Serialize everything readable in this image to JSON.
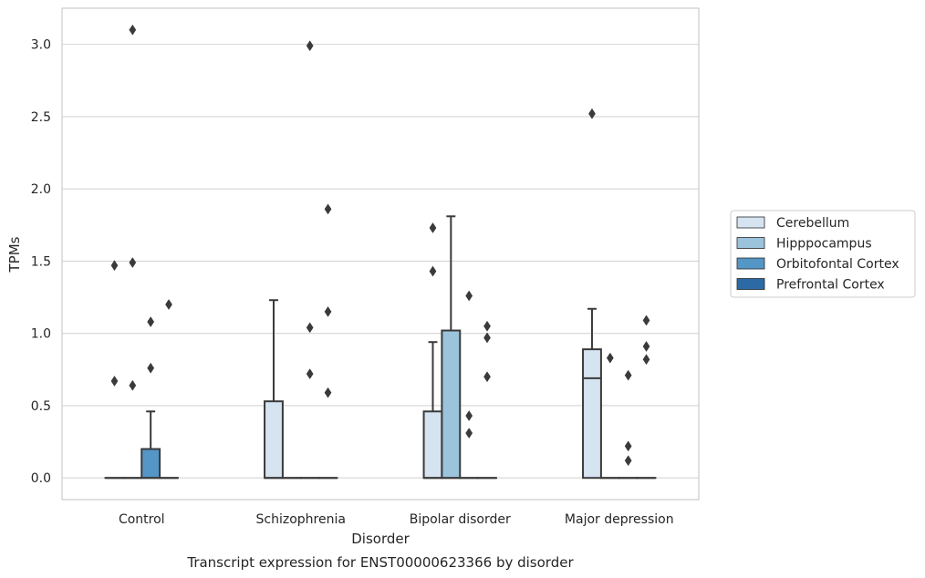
{
  "chart_data": {
    "type": "box",
    "title": "Transcript expression for ENST00000623366 by disorder",
    "xlabel": "Disorder",
    "ylabel": "TPMs",
    "ylim": [
      -0.15,
      3.25
    ],
    "yticks": [
      "0.0",
      "0.5",
      "1.0",
      "1.5",
      "2.0",
      "2.5",
      "3.0"
    ],
    "grid": true,
    "legend_position": "right",
    "categories": [
      "Control",
      "Schizophrenia",
      "Bipolar disorder",
      "Major depression"
    ],
    "series": [
      {
        "name": "Cerebellum",
        "color": "#d6e4f2",
        "boxes": [
          {
            "q1": 0,
            "median": 0,
            "q3": 0,
            "whisker_low": 0,
            "whisker_high": 0,
            "outliers": [
              1.47,
              0.67
            ]
          },
          {
            "q1": 0,
            "median": 0,
            "q3": 0.53,
            "whisker_low": 0,
            "whisker_high": 1.23,
            "outliers": []
          },
          {
            "q1": 0,
            "median": 0,
            "q3": 0.46,
            "whisker_low": 0,
            "whisker_high": 0.94,
            "outliers": [
              1.73,
              1.43
            ]
          },
          {
            "q1": 0,
            "median": 0.69,
            "q3": 0.89,
            "whisker_low": 0,
            "whisker_high": 1.17,
            "outliers": [
              2.52
            ]
          }
        ]
      },
      {
        "name": "Hipppocampus",
        "color": "#9cc3dc",
        "boxes": [
          {
            "q1": 0,
            "median": 0,
            "q3": 0,
            "whisker_low": 0,
            "whisker_high": 0,
            "outliers": [
              3.1,
              1.49,
              0.64
            ]
          },
          {
            "q1": 0,
            "median": 0,
            "q3": 0,
            "whisker_low": 0,
            "whisker_high": 0,
            "outliers": []
          },
          {
            "q1": 0,
            "median": 0,
            "q3": 1.02,
            "whisker_low": 0,
            "whisker_high": 1.81,
            "outliers": []
          },
          {
            "q1": 0,
            "median": 0,
            "q3": 0,
            "whisker_low": 0,
            "whisker_high": 0,
            "outliers": [
              0.83
            ]
          }
        ]
      },
      {
        "name": "Orbitofontal Cortex",
        "color": "#5496c5",
        "boxes": [
          {
            "q1": 0,
            "median": 0,
            "q3": 0.2,
            "whisker_low": 0,
            "whisker_high": 0.46,
            "outliers": [
              1.08,
              0.76
            ]
          },
          {
            "q1": 0,
            "median": 0,
            "q3": 0,
            "whisker_low": 0,
            "whisker_high": 0,
            "outliers": [
              2.99,
              1.04,
              0.72
            ]
          },
          {
            "q1": 0,
            "median": 0,
            "q3": 0,
            "whisker_low": 0,
            "whisker_high": 0,
            "outliers": [
              1.26,
              0.43,
              0.31
            ]
          },
          {
            "q1": 0,
            "median": 0,
            "q3": 0,
            "whisker_low": 0,
            "whisker_high": 0,
            "outliers": [
              0.71,
              0.22,
              0.12
            ]
          }
        ]
      },
      {
        "name": "Prefrontal Cortex",
        "color": "#2c6aa6",
        "boxes": [
          {
            "q1": 0,
            "median": 0,
            "q3": 0,
            "whisker_low": 0,
            "whisker_high": 0,
            "outliers": [
              1.2
            ]
          },
          {
            "q1": 0,
            "median": 0,
            "q3": 0,
            "whisker_low": 0,
            "whisker_high": 0,
            "outliers": [
              1.86,
              1.15,
              0.59
            ]
          },
          {
            "q1": 0,
            "median": 0,
            "q3": 0,
            "whisker_low": 0,
            "whisker_high": 0,
            "outliers": [
              1.05,
              0.97,
              0.7
            ]
          },
          {
            "q1": 0,
            "median": 0,
            "q3": 0,
            "whisker_low": 0,
            "whisker_high": 0,
            "outliers": [
              1.09,
              0.91,
              0.82
            ]
          }
        ]
      }
    ]
  }
}
